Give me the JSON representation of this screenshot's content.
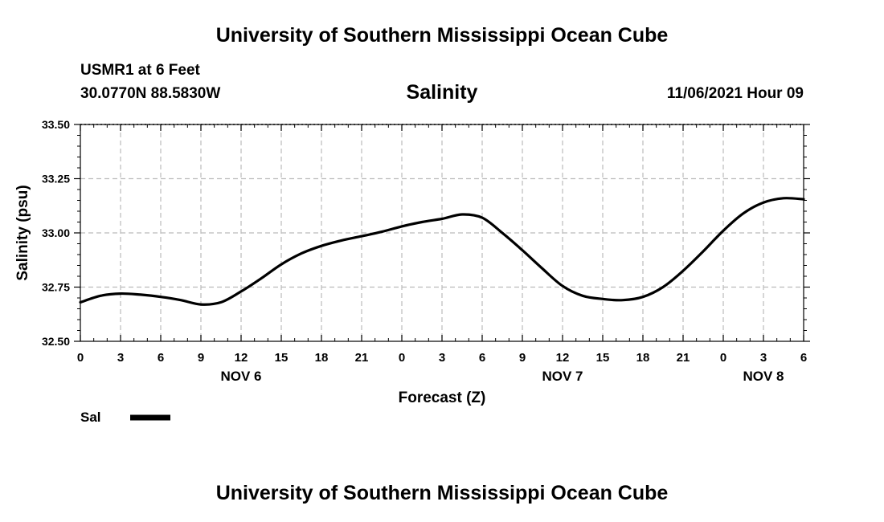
{
  "header": {
    "title": "University of Southern Mississippi Ocean Cube",
    "station": "USMR1 at 6 Feet",
    "coordinates": "30.0770N  88.5830W",
    "timestamp": "11/06/2021 Hour 09"
  },
  "footer": {
    "title": "University of Southern Mississippi Ocean Cube"
  },
  "colors": {
    "line": "#000000",
    "grid": "#bbbbbb",
    "background": "#ffffff"
  },
  "chart_data": {
    "type": "line",
    "title": "Salinity",
    "xlabel": "Forecast (Z)",
    "ylabel": "Salinity (psu)",
    "xlim": [
      0,
      54
    ],
    "ylim": [
      32.5,
      33.5
    ],
    "grid": true,
    "x_ticks": [
      0,
      3,
      6,
      9,
      12,
      15,
      18,
      21,
      24,
      27,
      30,
      33,
      36,
      39,
      42,
      45,
      48,
      51,
      54
    ],
    "x_tick_labels": [
      "0",
      "3",
      "6",
      "9",
      "12",
      "15",
      "18",
      "21",
      "0",
      "3",
      "6",
      "9",
      "12",
      "15",
      "18",
      "21",
      "0",
      "3",
      "6"
    ],
    "y_ticks": [
      32.5,
      32.75,
      33.0,
      33.25,
      33.5
    ],
    "y_tick_labels": [
      "32.50",
      "32.75",
      "33.00",
      "33.25",
      "33.50"
    ],
    "date_labels": [
      {
        "x": 12,
        "label": "NOV 6"
      },
      {
        "x": 36,
        "label": "NOV 7"
      },
      {
        "x": 51,
        "label": "NOV 8"
      }
    ],
    "legend": {
      "position": "bottom-left",
      "label": "Sal"
    },
    "series": [
      {
        "name": "Sal",
        "x": [
          0,
          1.5,
          3,
          4.5,
          6,
          7.5,
          9,
          10.5,
          12,
          13.5,
          15,
          16.5,
          18,
          19.5,
          21,
          22.5,
          24,
          25.5,
          27,
          28.5,
          30,
          31.5,
          33,
          34.5,
          36,
          37.5,
          39,
          40.5,
          42,
          43.5,
          45,
          46.5,
          48,
          49.5,
          51,
          52.5,
          54
        ],
        "values": [
          32.68,
          32.71,
          32.72,
          32.715,
          32.705,
          32.69,
          32.67,
          32.68,
          32.73,
          32.79,
          32.855,
          32.905,
          32.94,
          32.965,
          32.985,
          33.005,
          33.03,
          33.05,
          33.065,
          33.085,
          33.07,
          33.0,
          32.92,
          32.835,
          32.755,
          32.71,
          32.695,
          32.69,
          32.705,
          32.75,
          32.825,
          32.915,
          33.01,
          33.09,
          33.14,
          33.16,
          33.155
        ]
      }
    ]
  }
}
